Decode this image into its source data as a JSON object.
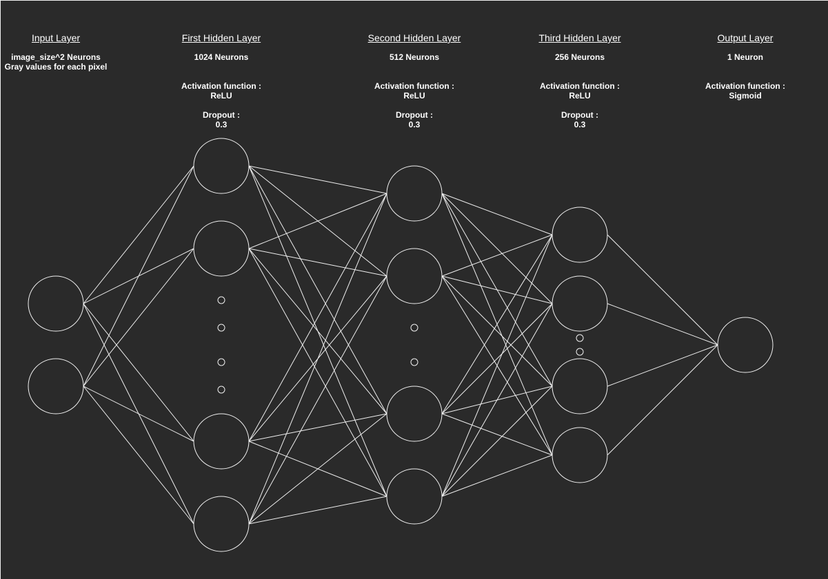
{
  "theme": {
    "background": "#2a2a2a",
    "stroke": "#f0f0f0",
    "text": "#ffffff"
  },
  "layers": [
    {
      "id": "input",
      "title": "Input Layer",
      "neurons": "image_size^2 Neurons",
      "neurons_note": "Gray values for each pixel",
      "activation_label": "",
      "activation": "",
      "dropout_label": "",
      "dropout": ""
    },
    {
      "id": "hidden1",
      "title": "First Hidden Layer",
      "neurons": "1024 Neurons",
      "neurons_note": "",
      "activation_label": "Activation function :",
      "activation": "ReLU",
      "dropout_label": "Dropout :",
      "dropout": "0.3"
    },
    {
      "id": "hidden2",
      "title": "Second Hidden Layer",
      "neurons": "512 Neurons",
      "neurons_note": "",
      "activation_label": "Activation function :",
      "activation": "ReLU",
      "dropout_label": "Dropout :",
      "dropout": "0.3"
    },
    {
      "id": "hidden3",
      "title": "Third Hidden Layer",
      "neurons": "256 Neurons",
      "neurons_note": "",
      "activation_label": "Activation function :",
      "activation": "ReLU",
      "dropout_label": "Dropout :",
      "dropout": "0.3"
    },
    {
      "id": "output",
      "title": "Output Layer",
      "neurons": "1 Neuron",
      "neurons_note": "",
      "activation_label": "Activation function :",
      "activation": "Sigmoid",
      "dropout_label": "",
      "dropout": ""
    }
  ]
}
